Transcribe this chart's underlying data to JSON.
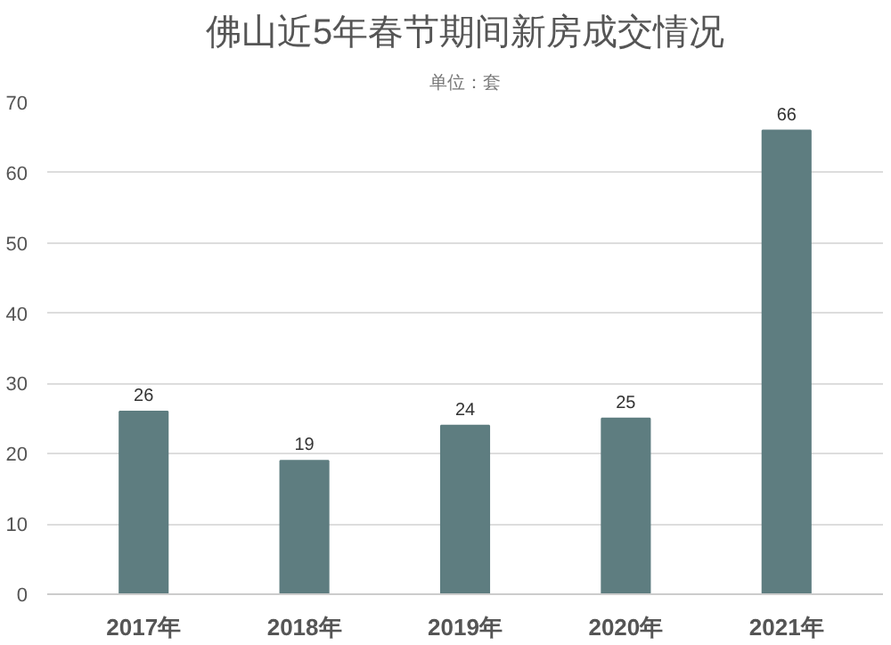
{
  "chart_data": {
    "type": "bar",
    "title": "佛山近5年春节期间新房成交情况",
    "subtitle": "单位：套",
    "categories": [
      "2017年",
      "2018年",
      "2019年",
      "2020年",
      "2021年"
    ],
    "values": [
      26,
      19,
      24,
      25,
      66
    ],
    "color": "#5e7d80",
    "data_labels": true,
    "ylim": [
      0,
      70
    ],
    "yticks": [
      0,
      10,
      20,
      30,
      40,
      50,
      60,
      70
    ],
    "grid": "y"
  }
}
